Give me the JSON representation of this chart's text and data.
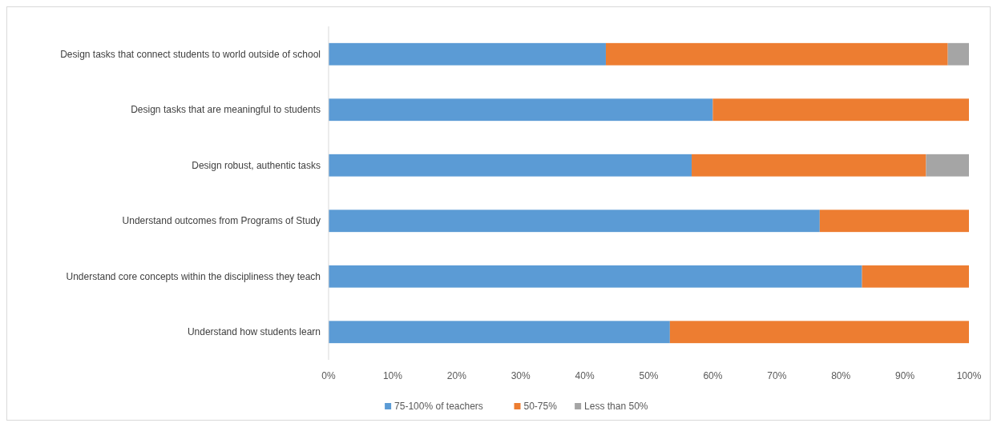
{
  "chart_data": {
    "type": "bar",
    "orientation": "horizontal",
    "stacked": true,
    "categories": [
      "Design tasks that connect students to world outside of school",
      "Design tasks that are meaningful to students",
      "Design robust, authentic tasks",
      "Understand outcomes from Programs of Study",
      "Understand core concepts within the discipliness they teach",
      "Understand how students learn"
    ],
    "series": [
      {
        "name": "75-100% of teachers",
        "color": "#5b9bd5",
        "values": [
          43.3,
          60,
          56.7,
          76.7,
          83.3,
          53.3
        ]
      },
      {
        "name": "50-75%",
        "color": "#ed7d31",
        "values": [
          53.4,
          40,
          36.6,
          23.3,
          16.7,
          46.7
        ]
      },
      {
        "name": "Less than 50%",
        "color": "#a5a5a5",
        "values": [
          3.3,
          0,
          6.7,
          0,
          0,
          0
        ]
      }
    ],
    "xlim": [
      0,
      100
    ],
    "xticks": [
      {
        "value": 0,
        "label": "0%"
      },
      {
        "value": 10,
        "label": "10%"
      },
      {
        "value": 20,
        "label": "20%"
      },
      {
        "value": 30,
        "label": "30%"
      },
      {
        "value": 40,
        "label": "40%"
      },
      {
        "value": 50,
        "label": "50%"
      },
      {
        "value": 60,
        "label": "60%"
      },
      {
        "value": 70,
        "label": "70%"
      },
      {
        "value": 80,
        "label": "80%"
      },
      {
        "value": 90,
        "label": "90%"
      },
      {
        "value": 100,
        "label": "100%"
      }
    ],
    "grid": false,
    "legend": "bottom"
  }
}
